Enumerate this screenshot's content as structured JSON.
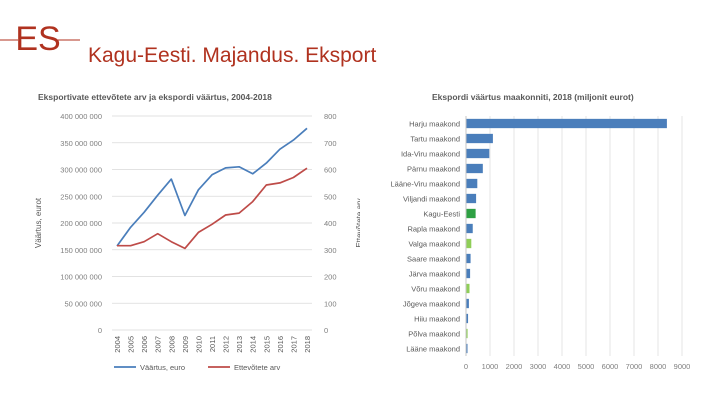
{
  "slide": {
    "title": "Kagu-Eesti. Majandus. Eksport",
    "logo_text": "ES",
    "accent_color": "#b0321f"
  },
  "chart_data": [
    {
      "type": "line",
      "title": "Eksportivate ettevõtete arv ja ekspordi väärtus, 2004-2018",
      "ylabel": "Väärtus, eurot",
      "y2label": "Ettevõtete arv",
      "ylim": [
        0,
        400000000
      ],
      "y2lim": [
        0,
        800
      ],
      "y_ticks": [
        "0",
        "50 000 000",
        "100 000 000",
        "150 000 000",
        "200 000 000",
        "250 000 000",
        "300 000 000",
        "350 000 000",
        "400 000 000"
      ],
      "y2_ticks": [
        "0",
        "100",
        "200",
        "300",
        "400",
        "500",
        "600",
        "700",
        "800"
      ],
      "x": [
        "2004",
        "2005",
        "2006",
        "2007",
        "2008",
        "2009",
        "2010",
        "2011",
        "2012",
        "2013",
        "2014",
        "2015",
        "2016",
        "2017",
        "2018"
      ],
      "grid": true,
      "legend": "bottom",
      "series": [
        {
          "name": "Väärtus, euro",
          "axis": "left",
          "color": "#4a7ebb",
          "values": [
            157000000,
            192000000,
            220000000,
            252000000,
            282000000,
            214000000,
            262000000,
            290000000,
            303000000,
            305000000,
            292000000,
            312000000,
            338000000,
            355000000,
            377000000
          ]
        },
        {
          "name": "Ettevõtete arv",
          "axis": "right",
          "color": "#be4b48",
          "values": [
            315,
            315,
            330,
            360,
            330,
            305,
            365,
            395,
            430,
            437,
            480,
            542,
            550,
            570,
            605
          ]
        }
      ]
    },
    {
      "type": "bar",
      "orientation": "horizontal",
      "title": "Ekspordi väärtus maakonniti, 2018 (miljonit eurot)",
      "xlim": [
        0,
        9000
      ],
      "x_ticks": [
        "0",
        "1000",
        "2000",
        "3000",
        "4000",
        "5000",
        "6000",
        "7000",
        "8000",
        "9000"
      ],
      "grid": true,
      "categories": [
        "Harju maakond",
        "Tartu maakond",
        "Ida-Viru maakond",
        "Pärnu maakond",
        "Lääne-Viru maakond",
        "Viljandi maakond",
        "Kagu-Eesti",
        "Rapla maakond",
        "Valga maakond",
        "Saare maakond",
        "Järva maakond",
        "Võru maakond",
        "Jõgeva maakond",
        "Hiiu maakond",
        "Põlva maakond",
        "Lääne maakond"
      ],
      "values": [
        8350,
        1100,
        950,
        680,
        450,
        400,
        380,
        260,
        200,
        170,
        150,
        125,
        100,
        65,
        45,
        35
      ],
      "highlight": [
        "Kagu-Eesti",
        "Valga maakond",
        "Võru maakond",
        "Põlva maakond"
      ],
      "colors": {
        "default": "#4a7ebb",
        "highlight_total": "#2ea043",
        "highlight_county": "#8fce58"
      }
    }
  ]
}
